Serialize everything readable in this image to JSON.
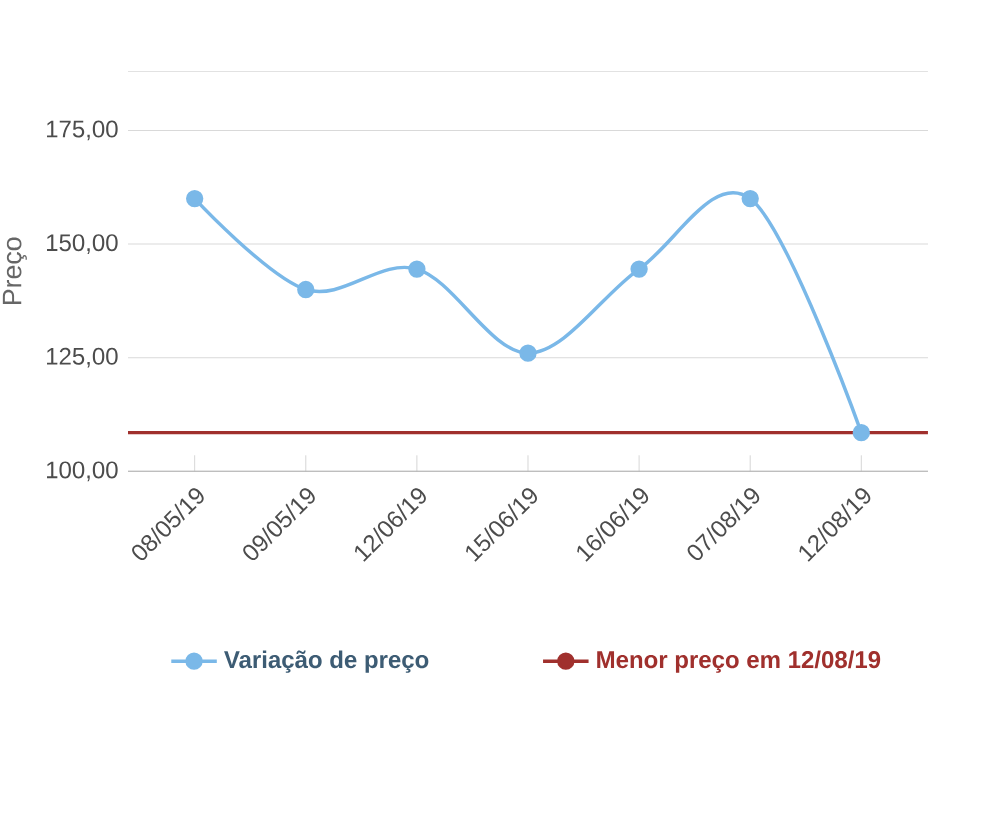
{
  "chart_data": {
    "type": "line",
    "ylabel": "Preço",
    "categories": [
      "08/05/19",
      "09/05/19",
      "12/06/19",
      "15/06/19",
      "16/06/19",
      "07/08/19",
      "12/08/19"
    ],
    "series": [
      {
        "name": "Variação de preço",
        "color": "#7ab8e8",
        "values": [
          160,
          140,
          144.5,
          126,
          144.5,
          160,
          108.5
        ]
      }
    ],
    "ref_lines": [
      {
        "axis": "y",
        "value": 108.5,
        "label": "Menor preço em 12/08/19",
        "color": "#a0302d"
      }
    ],
    "ylim": [
      100,
      188
    ],
    "yticks": [
      {
        "value": 100,
        "label": "100,00"
      },
      {
        "value": 125,
        "label": "125,00"
      },
      {
        "value": 150,
        "label": "150,00"
      },
      {
        "value": 175,
        "label": "175,00"
      }
    ],
    "grid": "y",
    "legend": "bottom",
    "marker": "circle",
    "line_style": "solid"
  }
}
